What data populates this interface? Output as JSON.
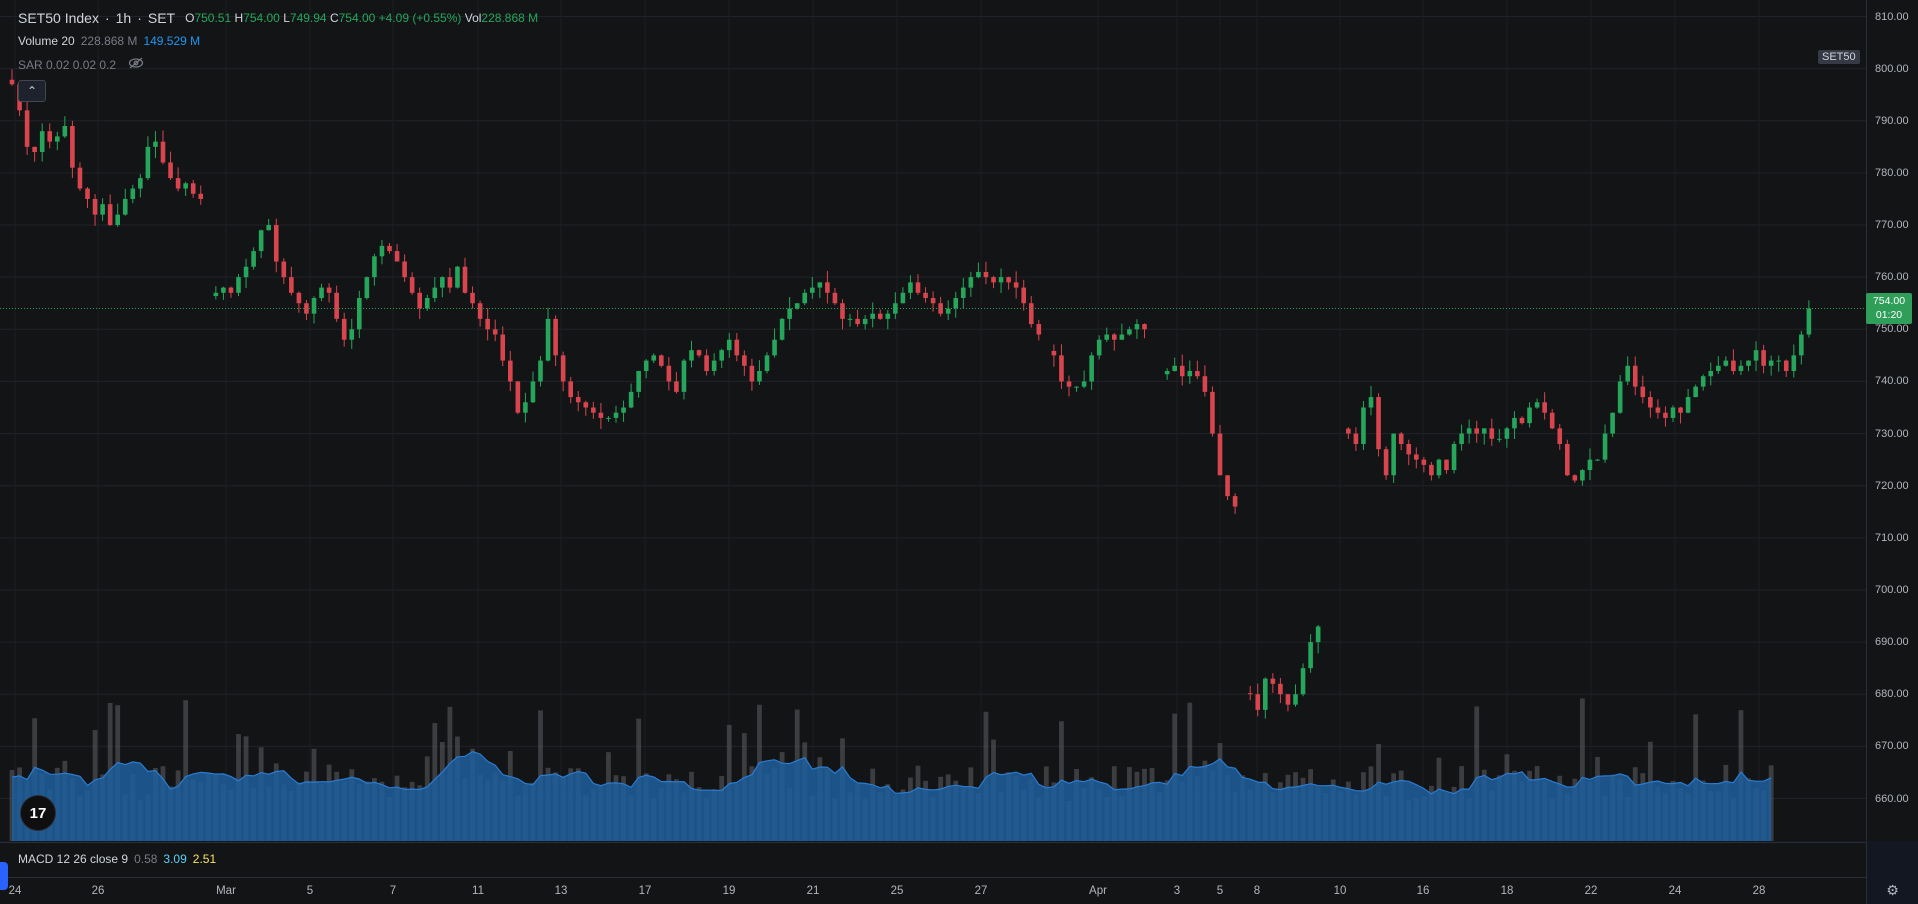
{
  "legend": {
    "symbol": "SET50 Index",
    "interval": "1h",
    "exchange": "SET",
    "open_label": "O",
    "open": "750.51",
    "high_label": "H",
    "high": "754.00",
    "low_label": "L",
    "low": "749.94",
    "close_label": "C",
    "close": "754.00",
    "change": "+4.09 (+0.55%)",
    "vol_label": "Vol",
    "vol": "228.868 M",
    "volume_indicator": "Volume 20",
    "volume_value": "228.868 M",
    "volume_ma": "149.529 M",
    "sar_indicator": "SAR 0.02 0.02 0.2"
  },
  "macd": {
    "label": "MACD 12 26 close 9",
    "v1": "0.58",
    "v2": "3.09",
    "v3": "2.51"
  },
  "badge": {
    "symbol": "SET50"
  },
  "last_price": {
    "price": "754.00",
    "countdown": "01:20"
  },
  "logo": {
    "text": "17"
  },
  "colors": {
    "up": "#26a65b",
    "down": "#d9454f",
    "volume_ma": "#1f5f9e",
    "volume_bar": "#5c5f66",
    "last_price": "#2e9e59"
  },
  "chart_data": {
    "type": "candlestick",
    "y_ticks": [
      "810.00",
      "800.00",
      "790.00",
      "780.00",
      "770.00",
      "760.00",
      "750.00",
      "740.00",
      "730.00",
      "720.00",
      "710.00",
      "700.00",
      "690.00",
      "680.00",
      "670.00",
      "660.00"
    ],
    "ylim": [
      651.9,
      812.6
    ],
    "x_ticks": [
      "24",
      "26",
      "Mar",
      "5",
      "7",
      "11",
      "13",
      "17",
      "19",
      "21",
      "25",
      "27",
      "Apr",
      "3",
      "5",
      "8",
      "10",
      "16",
      "18",
      "22",
      "24",
      "28"
    ],
    "close_segments": [
      {
        "closes": [
          797,
          792,
          785,
          784,
          788,
          786,
          787,
          789,
          781,
          777,
          775,
          772,
          774,
          770,
          772,
          775,
          777,
          779,
          785,
          786,
          782,
          779,
          777,
          778,
          776,
          775
        ],
        "start_bar": 0
      },
      {
        "closes": [
          757,
          758,
          757,
          760,
          762,
          765,
          769,
          770,
          763,
          760,
          757,
          755,
          753,
          756,
          758,
          757,
          752,
          748,
          750,
          756,
          760,
          764,
          766,
          765,
          763,
          760,
          757,
          754,
          756,
          758,
          760,
          758,
          762,
          757,
          755,
          752,
          750,
          749,
          744,
          740,
          734,
          736,
          740,
          744,
          752,
          745,
          740,
          737,
          736,
          735,
          734,
          733,
          733,
          734,
          735,
          738,
          742,
          744,
          745,
          743,
          740,
          738,
          744,
          746,
          745,
          742,
          744,
          746,
          748,
          745,
          743,
          740,
          742,
          745,
          748,
          752,
          754,
          755,
          757,
          758,
          759,
          757,
          755,
          752,
          752,
          751,
          752,
          753,
          752,
          753,
          755,
          757,
          759,
          757,
          756,
          755,
          753,
          754,
          756,
          758,
          760,
          761,
          760,
          759,
          760,
          759,
          758,
          755,
          751,
          749
        ],
        "start_bar": 27
      },
      {
        "closes": [
          745,
          740,
          739,
          739,
          740,
          745,
          748,
          749,
          748,
          749,
          750,
          751,
          750
        ],
        "start_bar": 138
      },
      {
        "closes": [
          742,
          743,
          741,
          742,
          741,
          738,
          730,
          722,
          718,
          716
        ],
        "start_bar": 153
      },
      {
        "closes": [
          680,
          677,
          683,
          682,
          680,
          678,
          680,
          685,
          690,
          693
        ],
        "start_bar": 164
      },
      {
        "closes": [
          730,
          728,
          735,
          737,
          727,
          722,
          730,
          728,
          726,
          725,
          724,
          722,
          725,
          723,
          728,
          730,
          731,
          730,
          731,
          729,
          729,
          731,
          733,
          732,
          735,
          736,
          734,
          731,
          728,
          722,
          721,
          723,
          725,
          725,
          730,
          734,
          740,
          743,
          739,
          737,
          735,
          734,
          733,
          735,
          734,
          737,
          739,
          741,
          742,
          743,
          744,
          742,
          743,
          744,
          746,
          743,
          744,
          744,
          742,
          745,
          749,
          754
        ],
        "start_bar": 177
      }
    ],
    "volume": {
      "ma_level": "149.529 M",
      "last_volume": "228.868 M"
    },
    "last_price": 754.0,
    "series": [
      {
        "name": "SET50 Index"
      }
    ]
  }
}
